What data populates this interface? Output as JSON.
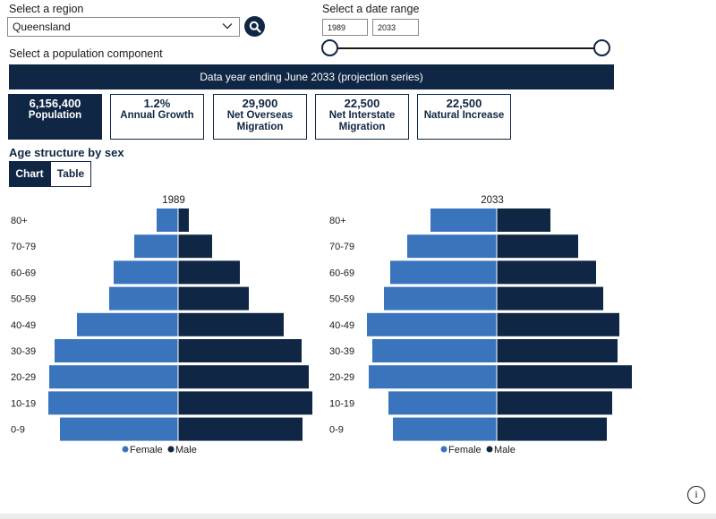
{
  "filters": {
    "region_label": "Select a region",
    "region_value": "Queensland",
    "date_label": "Select a date range",
    "date_start": "1989",
    "date_end": "2033",
    "component_label": "Select a population component"
  },
  "banner": "Data year ending June 2033 (projection series)",
  "kpis": [
    {
      "value": "6,156,400",
      "name": "Population"
    },
    {
      "value": "1.2%",
      "name": "Annual Growth"
    },
    {
      "value": "29,900",
      "name": "Net Overseas Migration"
    },
    {
      "value": "22,500",
      "name": "Net Interstate Migration"
    },
    {
      "value": "22,500",
      "name": "Natural Increase"
    }
  ],
  "section_title": "Age structure by sex",
  "tabs": {
    "chart": "Chart",
    "table": "Table"
  },
  "info_label": "i",
  "colors": {
    "navy": "#0f2744",
    "female": "#3a74bd",
    "male": "#0f2744"
  },
  "chart_data": {
    "type": "bar",
    "orientation": "horizontal-population-pyramid",
    "categories": [
      "80+",
      "70-79",
      "60-69",
      "50-59",
      "40-49",
      "30-39",
      "20-29",
      "10-19",
      "0-9"
    ],
    "units": "relative bar length (no value axis shown)",
    "legend": [
      "Female",
      "Male"
    ],
    "panels": [
      {
        "title": "1989",
        "series": [
          {
            "name": "Female",
            "values": [
              24,
              49,
              72,
              77,
              113,
              138,
              144,
              145,
              132
            ]
          },
          {
            "name": "Male",
            "values": [
              12,
              38,
              69,
              79,
              118,
              138,
              146,
              150,
              139
            ]
          }
        ]
      },
      {
        "title": "2033",
        "series": [
          {
            "name": "Female",
            "values": [
              74,
              100,
              119,
              126,
              145,
              139,
              143,
              121,
              116
            ]
          },
          {
            "name": "Male",
            "values": [
              60,
              91,
              111,
              119,
              137,
              135,
              151,
              129,
              123
            ]
          }
        ]
      }
    ]
  }
}
